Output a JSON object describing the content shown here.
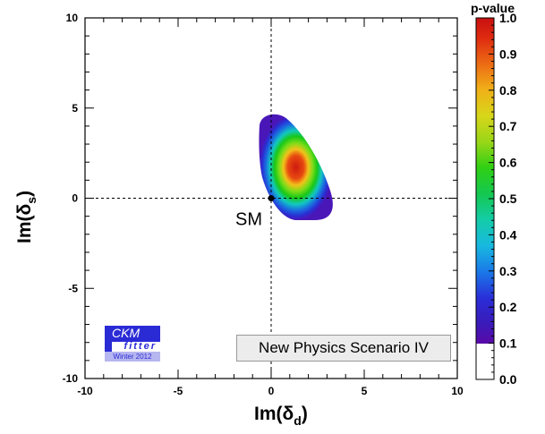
{
  "chart_data": {
    "type": "heatmap",
    "xlabel_main": "Im(δ",
    "xlabel_sub": "d",
    "ylabel_main": "Im(δ",
    "ylabel_sub": "s",
    "xlim": [
      -10,
      10
    ],
    "ylim": [
      -10,
      10
    ],
    "x_ticks": [
      "-10",
      "-5",
      "0",
      "5",
      "10"
    ],
    "y_ticks": [
      "-10",
      "-5",
      "0",
      "5",
      "10"
    ],
    "x_tick_values": [
      -10,
      -5,
      0,
      5,
      10
    ],
    "y_tick_values": [
      -10,
      -5,
      0,
      5,
      10
    ],
    "colorbar_title": "p-value",
    "colorbar_ticks": [
      "0.0",
      "0.1",
      "0.2",
      "0.3",
      "0.4",
      "0.5",
      "0.6",
      "0.7",
      "0.8",
      "0.9",
      "1.0"
    ],
    "colorbar_tick_values": [
      0,
      0.1,
      0.2,
      0.3,
      0.4,
      0.5,
      0.6,
      0.7,
      0.8,
      0.9,
      1.0
    ],
    "sm_point": {
      "x": 0,
      "y": 0,
      "label": "SM"
    },
    "best_fit_region": {
      "center_x": 0.9,
      "center_y": 1.3,
      "p_max": 1.0
    },
    "annotation": "New Physics Scenario IV",
    "logo": {
      "line1": "CKM",
      "line2": "fitter",
      "line3": "Winter 2012"
    }
  }
}
